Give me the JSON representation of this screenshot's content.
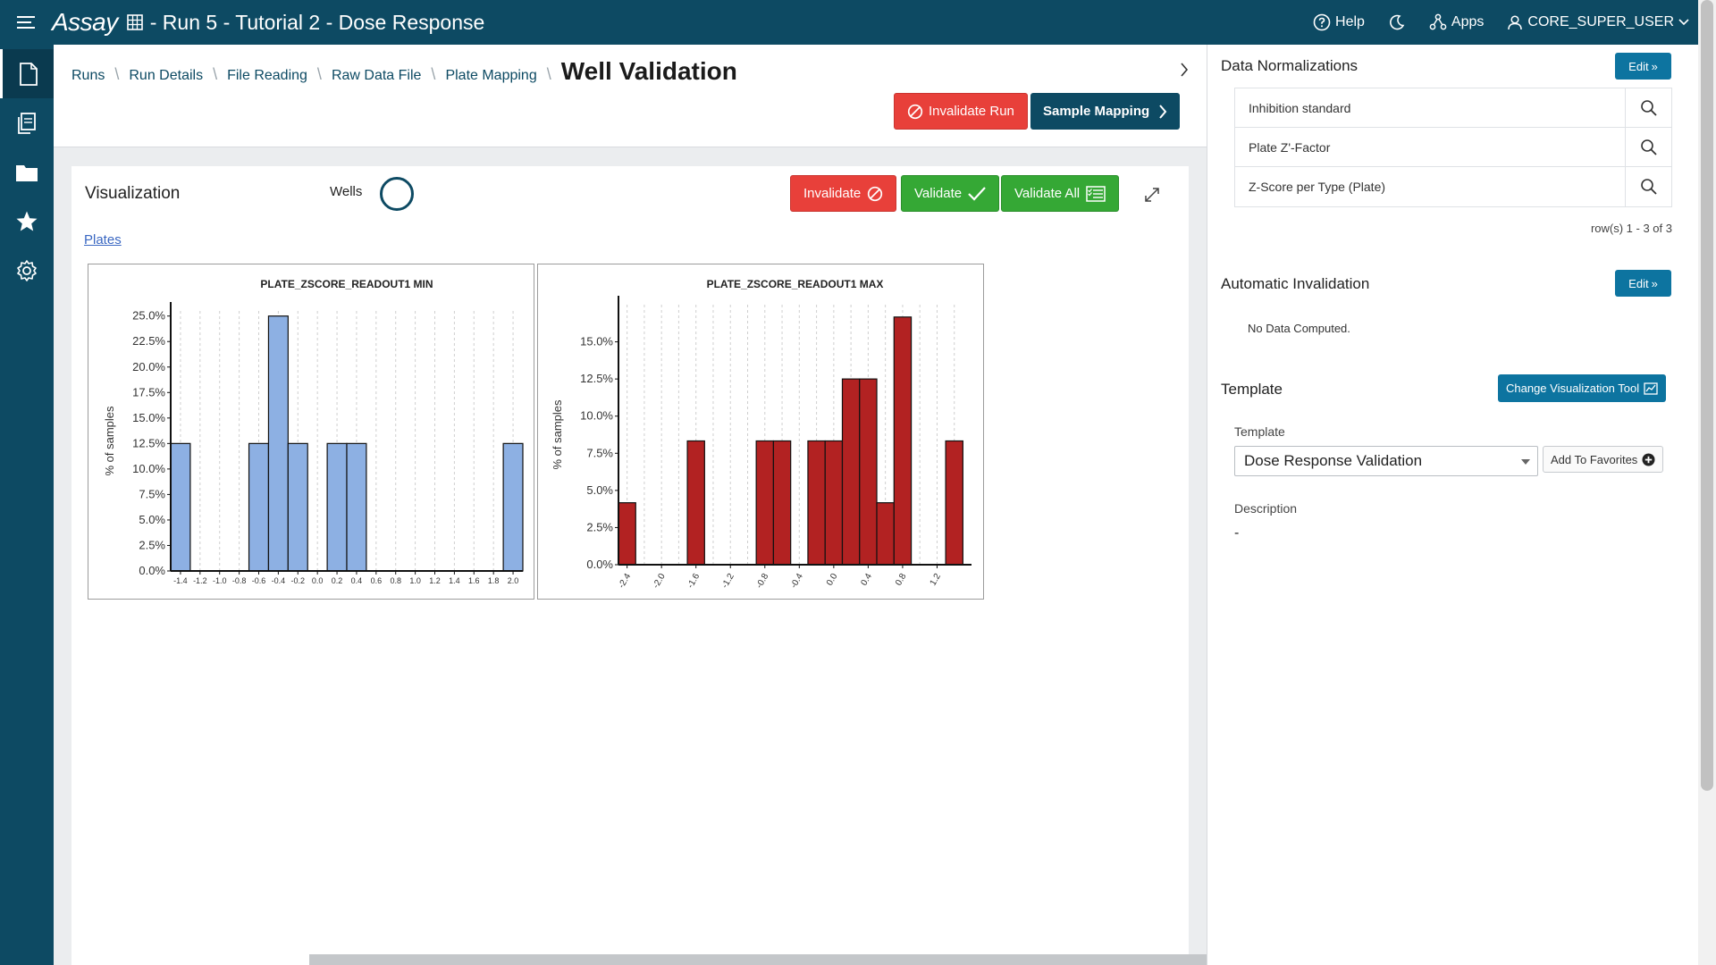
{
  "header": {
    "brand": "Assay",
    "title": "- Run 5 - Tutorial 2 - Dose Response",
    "help_label": "Help",
    "apps_label": "Apps",
    "user_label": "CORE_SUPER_USER"
  },
  "breadcrumb": {
    "items": [
      "Runs",
      "Run Details",
      "File Reading",
      "Raw Data File",
      "Plate Mapping"
    ],
    "current": "Well Validation"
  },
  "actions": {
    "invalidate_run": "Invalidate Run",
    "sample_mapping": "Sample Mapping"
  },
  "visualization": {
    "title": "Visualization",
    "wells_label": "Wells",
    "invalidate_label": "Invalidate",
    "validate_label": "Validate",
    "validate_all_label": "Validate All",
    "plates_link": "Plates"
  },
  "chart_data": [
    {
      "type": "bar",
      "title": "PLATE_ZSCORE_READOUT1 MIN",
      "ylabel": "% of samples",
      "xlabel": "",
      "color": "#8db0e3",
      "x_ticks": [
        "-1.4",
        "-1.2",
        "-1.0",
        "-0.8",
        "-0.6",
        "-0.4",
        "-0.2",
        "0.0",
        "0.2",
        "0.4",
        "0.6",
        "0.8",
        "1.0",
        "1.2",
        "1.4",
        "1.6",
        "1.8",
        "2.0"
      ],
      "x_range": [
        -1.5,
        2.1
      ],
      "y_ticks": [
        "0.0%",
        "2.5%",
        "5.0%",
        "7.5%",
        "10.0%",
        "12.5%",
        "15.0%",
        "17.5%",
        "20.0%",
        "22.5%",
        "25.0%"
      ],
      "ylim": [
        0,
        25.5
      ],
      "bin_width": 0.2,
      "bins": [
        {
          "start": -1.5,
          "value": 12.5
        },
        {
          "start": -0.7,
          "value": 12.5
        },
        {
          "start": -0.5,
          "value": 25.0
        },
        {
          "start": -0.3,
          "value": 12.5
        },
        {
          "start": 0.1,
          "value": 12.5
        },
        {
          "start": 0.3,
          "value": 12.5
        },
        {
          "start": 1.9,
          "value": 12.5
        }
      ],
      "grid": "vertical dashed"
    },
    {
      "type": "bar",
      "title": "PLATE_ZSCORE_READOUT1 MAX",
      "ylabel": "% of samples",
      "xlabel": "",
      "color": "#b22222",
      "x_ticks": [
        "-2.4",
        "-2.0",
        "-1.6",
        "-1.2",
        "-0.8",
        "-0.4",
        "0.0",
        "0.4",
        "0.8",
        "1.2"
      ],
      "x_tick_values": [
        -2.4,
        -2.0,
        -1.6,
        -1.2,
        -0.8,
        -0.4,
        0.0,
        0.4,
        0.8,
        1.2
      ],
      "x_range": [
        -2.5,
        1.6
      ],
      "y_ticks": [
        "0.0%",
        "2.5%",
        "5.0%",
        "7.5%",
        "10.0%",
        "12.5%",
        "15.0%"
      ],
      "ylim": [
        0,
        17.5
      ],
      "bin_width": 0.2,
      "bins": [
        {
          "start": -2.5,
          "value": 4.17
        },
        {
          "start": -1.7,
          "value": 8.33
        },
        {
          "start": -0.9,
          "value": 8.33
        },
        {
          "start": -0.7,
          "value": 8.33
        },
        {
          "start": -0.3,
          "value": 8.33
        },
        {
          "start": -0.1,
          "value": 8.33
        },
        {
          "start": 0.1,
          "value": 12.5
        },
        {
          "start": 0.3,
          "value": 12.5
        },
        {
          "start": 0.5,
          "value": 4.17
        },
        {
          "start": 0.7,
          "value": 16.67
        },
        {
          "start": 1.3,
          "value": 8.33
        }
      ],
      "grid": "vertical dashed"
    }
  ],
  "data_normalizations": {
    "title": "Data Normalizations",
    "edit_label": "Edit",
    "rows": [
      "Inhibition standard",
      "Plate Z'-Factor",
      "Z-Score per Type (Plate)"
    ],
    "count_text": "row(s) 1 - 3 of 3"
  },
  "automatic_invalidation": {
    "title": "Automatic Invalidation",
    "edit_label": "Edit",
    "empty_text": "No Data Computed."
  },
  "template": {
    "section_title": "Template",
    "change_tool_label": "Change Visualization Tool",
    "field_label": "Template",
    "selected": "Dose Response Validation",
    "add_favorites_label": "Add To Favorites",
    "description_label": "Description",
    "description_value": "-"
  }
}
